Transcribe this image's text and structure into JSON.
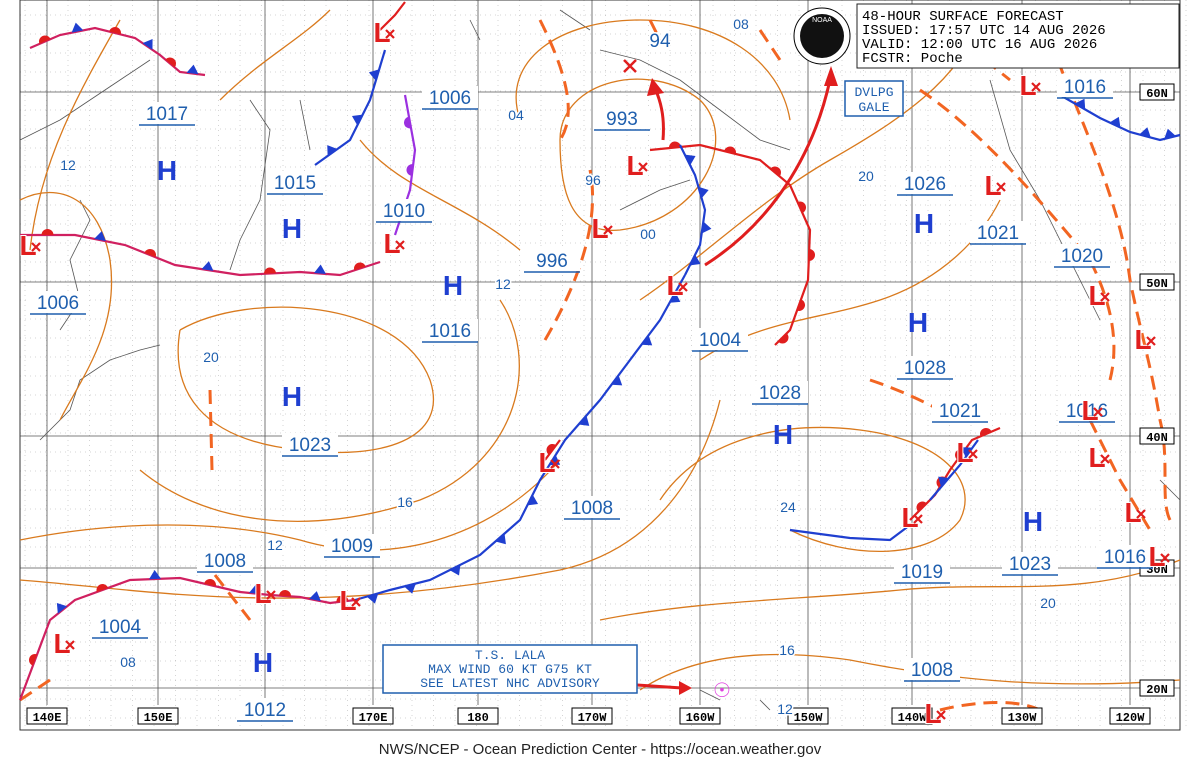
{
  "header": {
    "lines": [
      "48-HOUR SURFACE FORECAST",
      "ISSUED: 17:57 UTC 14 AUG 2026",
      "VALID: 12:00 UTC 16 AUG 2026",
      "FCSTR: Poche"
    ],
    "logo": "NOAA"
  },
  "warning": [
    "DVLPG",
    "GALE"
  ],
  "advisory": [
    "T.S. LALA",
    "MAX WIND 60 KT G75 KT",
    "SEE LATEST NHC ADVISORY"
  ],
  "footer": "NWS/NCEP - Ocean Prediction Center - https://ocean.weather.gov",
  "longitudes": [
    "140E",
    "150E",
    "170E",
    "180",
    "170W",
    "160W",
    "150W",
    "140W",
    "130W",
    "120W"
  ],
  "latitudes": [
    "60N",
    "50N",
    "40N",
    "30N",
    "20N"
  ],
  "pressures": [
    "1017",
    "1015",
    "1010",
    "1006",
    "1006",
    "1016",
    "1023",
    "1009",
    "1008",
    "1004",
    "1012",
    "993",
    "996",
    "1004",
    "1028",
    "1008",
    "1026",
    "1021",
    "1028",
    "1021",
    "1019",
    "1023",
    "1020",
    "1016",
    "1016",
    "1016",
    "1008"
  ],
  "isobar_labels": [
    "12",
    "04",
    "96",
    "00",
    "12",
    "08",
    "20",
    "20",
    "16",
    "12",
    "08",
    "24",
    "20",
    "16",
    "12",
    "94"
  ],
  "highs": [
    "H",
    "H",
    "H",
    "H",
    "H",
    "H",
    "H",
    "H",
    "H"
  ],
  "lows": [
    "L",
    "L",
    "L",
    "L",
    "L",
    "L",
    "L",
    "L",
    "L",
    "L",
    "L",
    "L",
    "L",
    "L",
    "L",
    "L",
    "L",
    "L",
    "L",
    "L",
    "L"
  ]
}
